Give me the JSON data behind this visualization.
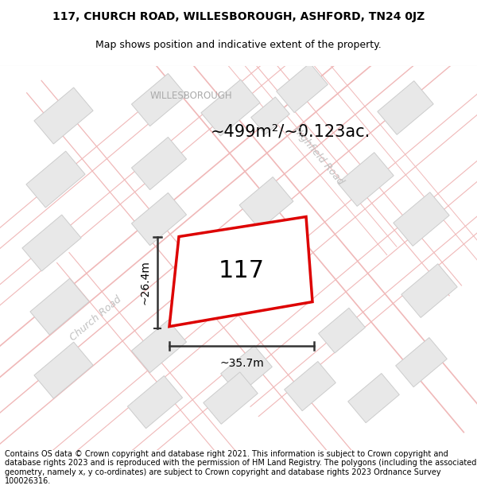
{
  "title_line1": "117, CHURCH ROAD, WILLESBOROUGH, ASHFORD, TN24 0JZ",
  "title_line2": "Map shows position and indicative extent of the property.",
  "footer_text": "Contains OS data © Crown copyright and database right 2021. This information is subject to Crown copyright and database rights 2023 and is reproduced with the permission of HM Land Registry. The polygons (including the associated geometry, namely x, y co-ordinates) are subject to Crown copyright and database rights 2023 Ordnance Survey 100026316.",
  "area_label": "~499m²/~0.123ac.",
  "width_label": "~35.7m",
  "height_label": "~26.4m",
  "house_number": "117",
  "willesborough_label": "WILLESBOROUGH",
  "church_road_label": "Church Road",
  "highfield_road_label": "Highfield Road",
  "map_bg_color": "#fafafa",
  "building_fill": "#e8e8e8",
  "building_edge": "#cccccc",
  "road_line_color": "#f0b8b8",
  "road_center_color": "#e8d0d0",
  "highlight_color": "#dd0000",
  "dim_line_color": "#333333",
  "label_gray": "#aaaaaa",
  "title_fontsize": 10,
  "footer_fontsize": 7
}
